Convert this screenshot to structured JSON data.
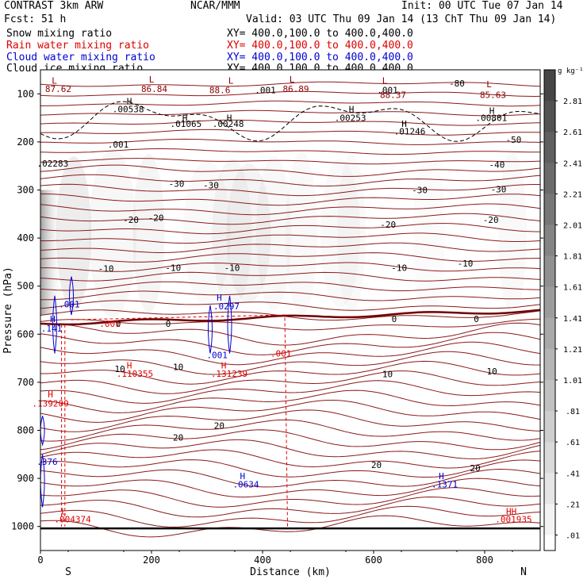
{
  "header": {
    "model": "CONTRAST  3km ARW",
    "center": "NCAR/MMM",
    "init": "Init: 00 UTC Tue 07 Jan 14",
    "fcst": "Fcst:   51 h",
    "valid": "Valid: 03 UTC Thu 09 Jan 14 (13 ChT Thu 09 Jan 14)"
  },
  "legend": [
    {
      "label": "Snow mixing ratio",
      "xy": "XY= 400.0,100.0 to 400.0,400.0",
      "color": "#000000"
    },
    {
      "label": "Rain water mixing ratio",
      "xy": "XY= 400.0,100.0 to 400.0,400.0",
      "color": "#e00000"
    },
    {
      "label": "Cloud water mixing ratio",
      "xy": "XY= 400.0,100.0 to 400.0,400.0",
      "color": "#0000d0"
    },
    {
      "label": "Cloud ice mixing ratio",
      "xy": "XY= 400.0,100.0 to 400.0,400.0",
      "color": "#000000"
    }
  ],
  "colorbar": {
    "unit": "g kg⁻¹",
    "labels": [
      "2.81",
      "2.61",
      "2.41",
      "2.21",
      "2.01",
      "1.81",
      "1.61",
      "1.41",
      "1.21",
      "1.01",
      ".81",
      ".61",
      ".41",
      ".21",
      ".01"
    ]
  },
  "chart_data": {
    "type": "contour-cross-section",
    "ylabel": "Pressure (hPa)",
    "xlabel": "Distance (km)",
    "x_start_label": "S",
    "x_end_label": "N",
    "xlim": [
      0,
      900
    ],
    "ylim": [
      1050,
      50
    ],
    "xticks": [
      0,
      200,
      400,
      600,
      800
    ],
    "yticks": [
      100,
      200,
      300,
      400,
      500,
      600,
      700,
      800,
      900,
      1000
    ],
    "temperature_labels": [
      {
        "text": "-80",
        "x": 750,
        "p": 78
      },
      {
        "text": "-50",
        "x": 852,
        "p": 195
      },
      {
        "text": "-40",
        "x": 822,
        "p": 247
      },
      {
        "text": "-30",
        "x": 245,
        "p": 287
      },
      {
        "text": "-30",
        "x": 307,
        "p": 290
      },
      {
        "text": "-30",
        "x": 683,
        "p": 300
      },
      {
        "text": "-30",
        "x": 825,
        "p": 298
      },
      {
        "text": "-20",
        "x": 163,
        "p": 362
      },
      {
        "text": "-20",
        "x": 208,
        "p": 358
      },
      {
        "text": "-20",
        "x": 626,
        "p": 372
      },
      {
        "text": "-20",
        "x": 811,
        "p": 362
      },
      {
        "text": "-10",
        "x": 118,
        "p": 463
      },
      {
        "text": "-10",
        "x": 239,
        "p": 462
      },
      {
        "text": "-10",
        "x": 345,
        "p": 462
      },
      {
        "text": "-10",
        "x": 646,
        "p": 462
      },
      {
        "text": "-10",
        "x": 765,
        "p": 453
      },
      {
        "text": "0",
        "x": 140,
        "p": 578
      },
      {
        "text": "0",
        "x": 230,
        "p": 578
      },
      {
        "text": "0",
        "x": 637,
        "p": 568
      },
      {
        "text": "0",
        "x": 785,
        "p": 568
      },
      {
        "text": "10",
        "x": 143,
        "p": 672
      },
      {
        "text": "10",
        "x": 248,
        "p": 668
      },
      {
        "text": "10",
        "x": 625,
        "p": 683
      },
      {
        "text": "10",
        "x": 813,
        "p": 677
      },
      {
        "text": "20",
        "x": 248,
        "p": 815
      },
      {
        "text": "20",
        "x": 322,
        "p": 790
      },
      {
        "text": "20",
        "x": 605,
        "p": 872
      },
      {
        "text": "20",
        "x": 783,
        "p": 878
      }
    ],
    "extrema_labels": [
      {
        "text": "L",
        "x": 25,
        "p": 72,
        "color": "#8b0000"
      },
      {
        "text": "87.62",
        "x": 32,
        "p": 90,
        "color": "#8b0000"
      },
      {
        "text": "L",
        "x": 200,
        "p": 70,
        "color": "#8b0000"
      },
      {
        "text": "86.84",
        "x": 205,
        "p": 90,
        "color": "#8b0000"
      },
      {
        "text": "L",
        "x": 343,
        "p": 72,
        "color": "#8b0000"
      },
      {
        "text": "88.6",
        "x": 323,
        "p": 92,
        "color": "#8b0000"
      },
      {
        "text": "L",
        "x": 453,
        "p": 70,
        "color": "#8b0000"
      },
      {
        "text": "86.89",
        "x": 460,
        "p": 90,
        "color": "#8b0000"
      },
      {
        "text": "L",
        "x": 620,
        "p": 72,
        "color": "#8b0000"
      },
      {
        "text": "88.37",
        "x": 635,
        "p": 102,
        "color": "#8b0000"
      },
      {
        "text": "L",
        "x": 808,
        "p": 80,
        "color": "#8b0000"
      },
      {
        "text": "85.63",
        "x": 815,
        "p": 102,
        "color": "#8b0000"
      },
      {
        "text": "H",
        "x": 160,
        "p": 115,
        "color": "#000000"
      },
      {
        "text": ".00538",
        "x": 158,
        "p": 132,
        "color": "#000000"
      },
      {
        "text": ".001",
        "x": 405,
        "p": 92,
        "color": "#000000"
      },
      {
        "text": ".001",
        "x": 625,
        "p": 92,
        "color": "#000000"
      },
      {
        "text": "H",
        "x": 260,
        "p": 150,
        "color": "#000000"
      },
      {
        "text": ".01065",
        "x": 262,
        "p": 162,
        "color": "#000000"
      },
      {
        "text": "H",
        "x": 340,
        "p": 150,
        "color": "#000000"
      },
      {
        "text": ".00248",
        "x": 338,
        "p": 162,
        "color": "#000000"
      },
      {
        "text": "H",
        "x": 560,
        "p": 132,
        "color": "#000000"
      },
      {
        "text": ".00253",
        "x": 558,
        "p": 150,
        "color": "#000000"
      },
      {
        "text": "H",
        "x": 813,
        "p": 135,
        "color": "#000000"
      },
      {
        "text": ".00801",
        "x": 812,
        "p": 150,
        "color": "#000000"
      },
      {
        "text": "H",
        "x": 655,
        "p": 162,
        "color": "#000000"
      },
      {
        "text": ".01246",
        "x": 665,
        "p": 178,
        "color": "#000000"
      },
      {
        "text": ".001",
        "x": 140,
        "p": 205,
        "color": "#000000"
      },
      {
        "text": ".02283",
        "x": 22,
        "p": 245,
        "color": "#000000"
      },
      {
        "text": ".001",
        "x": 52,
        "p": 538,
        "color": "#0000d0"
      },
      {
        "text": "H",
        "x": 22,
        "p": 568,
        "color": "#0000d0"
      },
      {
        "text": ".141",
        "x": 20,
        "p": 588,
        "color": "#0000d0"
      },
      {
        "text": "H",
        "x": 322,
        "p": 524,
        "color": "#0000d0"
      },
      {
        "text": ".0297",
        "x": 335,
        "p": 542,
        "color": "#0000d0"
      },
      {
        "text": ".001",
        "x": 318,
        "p": 643,
        "color": "#0000d0"
      },
      {
        "text": "H",
        "x": 364,
        "p": 895,
        "color": "#0000d0"
      },
      {
        "text": ".0634",
        "x": 370,
        "p": 912,
        "color": "#0000d0"
      },
      {
        "text": "H",
        "x": 722,
        "p": 895,
        "color": "#0000d0"
      },
      {
        "text": ".1371",
        "x": 728,
        "p": 912,
        "color": "#0000d0"
      },
      {
        "text": ".376",
        "x": 12,
        "p": 865,
        "color": "#0000d0"
      },
      {
        "text": ".001",
        "x": 125,
        "p": 578,
        "color": "#e00000"
      },
      {
        "text": ".001",
        "x": 433,
        "p": 640,
        "color": "#e00000"
      },
      {
        "text": "H",
        "x": 160,
        "p": 665,
        "color": "#e00000"
      },
      {
        "text": ".110355",
        "x": 170,
        "p": 682,
        "color": "#e00000"
      },
      {
        "text": "H",
        "x": 330,
        "p": 665,
        "color": "#e00000"
      },
      {
        "text": ".131239",
        "x": 340,
        "p": 682,
        "color": "#e00000"
      },
      {
        "text": "H",
        "x": 18,
        "p": 725,
        "color": "#e00000"
      },
      {
        "text": ".139209",
        "x": 18,
        "p": 744,
        "color": "#e00000"
      },
      {
        "text": "L",
        "x": 42,
        "p": 968,
        "color": "#e00000"
      },
      {
        "text": ".004374",
        "x": 58,
        "p": 985,
        "color": "#e00000"
      },
      {
        "text": "HH",
        "x": 848,
        "p": 968,
        "color": "#e00000"
      },
      {
        "text": ".001935",
        "x": 852,
        "p": 985,
        "color": "#e00000"
      }
    ]
  }
}
